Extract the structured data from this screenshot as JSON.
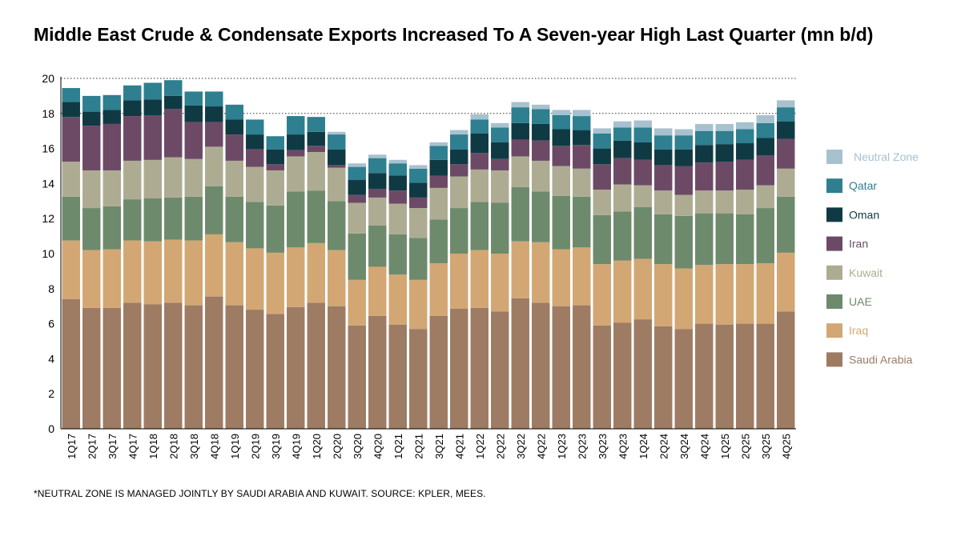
{
  "title": "Middle East Crude & Condensate Exports Increased To A Seven-year High Last Quarter (mn b/d)",
  "footnote": "*NEUTRAL ZONE IS MANAGED JOINTLY BY SAUDI ARABIA AND KUWAIT. SOURCE: KPLER, MEES.",
  "chart_data": {
    "type": "bar",
    "stacked": true,
    "title": "Middle East Crude & Condensate Exports Increased To A Seven-year High Last Quarter (mn b/d)",
    "xlabel": "",
    "ylabel": "",
    "ylim": [
      0,
      20
    ],
    "yticks": [
      0,
      2,
      4,
      6,
      8,
      10,
      12,
      14,
      16,
      18,
      20
    ],
    "grid": "dotted horizontal at 18 and 20",
    "legend_position": "right",
    "categories": [
      "1Q17",
      "2Q17",
      "3Q17",
      "4Q17",
      "1Q18",
      "2Q18",
      "3Q18",
      "4Q18",
      "1Q19",
      "2Q19",
      "3Q19",
      "4Q19",
      "1Q20",
      "2Q20",
      "3Q20",
      "4Q20",
      "1Q21",
      "2Q21",
      "3Q21",
      "4Q21",
      "1Q22",
      "2Q22",
      "3Q22",
      "4Q22",
      "1Q23",
      "2Q23",
      "3Q23",
      "4Q23",
      "1Q24",
      "2Q24",
      "3Q24",
      "4Q24",
      "1Q25",
      "2Q25",
      "3Q25",
      "4Q25"
    ],
    "series": [
      {
        "name": "Saudi Arabia",
        "color": "#9e7b63",
        "values": [
          7.4,
          6.9,
          6.9,
          7.2,
          7.1,
          7.2,
          7.05,
          7.55,
          7.05,
          6.8,
          6.55,
          6.95,
          7.2,
          7.0,
          5.9,
          6.45,
          5.95,
          5.7,
          6.45,
          6.85,
          6.9,
          6.7,
          7.45,
          7.2,
          7.0,
          7.05,
          5.9,
          6.05,
          6.25,
          5.85,
          5.7,
          6.0,
          5.95,
          6.0,
          6.0,
          6.7
        ]
      },
      {
        "name": "Iraq",
        "color": "#d2a774",
        "values": [
          3.35,
          3.3,
          3.35,
          3.55,
          3.6,
          3.6,
          3.7,
          3.55,
          3.6,
          3.5,
          3.5,
          3.4,
          3.4,
          3.2,
          2.6,
          2.8,
          2.85,
          2.8,
          3.0,
          3.15,
          3.3,
          3.3,
          3.25,
          3.45,
          3.25,
          3.3,
          3.5,
          3.55,
          3.45,
          3.55,
          3.45,
          3.35,
          3.45,
          3.4,
          3.45,
          3.35
        ]
      },
      {
        "name": "UAE",
        "color": "#6e8a6c",
        "values": [
          2.5,
          2.4,
          2.45,
          2.35,
          2.45,
          2.4,
          2.5,
          2.75,
          2.6,
          2.65,
          2.7,
          3.2,
          3.0,
          2.8,
          2.65,
          2.35,
          2.3,
          2.4,
          2.5,
          2.6,
          2.75,
          2.9,
          3.1,
          2.9,
          3.05,
          2.9,
          2.8,
          2.8,
          2.95,
          2.85,
          3.0,
          2.95,
          2.9,
          2.85,
          3.15,
          3.2
        ]
      },
      {
        "name": "Kuwait",
        "color": "#adac92",
        "values": [
          2.0,
          2.15,
          2.05,
          2.2,
          2.2,
          2.3,
          2.15,
          2.25,
          2.05,
          2.0,
          2.0,
          2.0,
          2.2,
          1.9,
          1.75,
          1.6,
          1.75,
          1.7,
          1.8,
          1.8,
          1.85,
          1.85,
          1.75,
          1.75,
          1.7,
          1.6,
          1.45,
          1.55,
          1.25,
          1.35,
          1.2,
          1.3,
          1.3,
          1.4,
          1.3,
          1.6
        ]
      },
      {
        "name": "Iran",
        "color": "#6c4a66",
        "values": [
          2.55,
          2.55,
          2.65,
          2.55,
          2.55,
          2.75,
          2.1,
          1.4,
          1.5,
          1.0,
          0.35,
          0.35,
          0.35,
          0.15,
          0.45,
          0.5,
          0.75,
          0.6,
          0.7,
          0.7,
          0.95,
          0.65,
          0.95,
          1.15,
          1.15,
          1.35,
          1.45,
          1.5,
          1.45,
          1.45,
          1.65,
          1.6,
          1.65,
          1.7,
          1.7,
          1.7
        ]
      },
      {
        "name": "Oman",
        "color": "#0f3a44",
        "values": [
          0.85,
          0.8,
          0.8,
          0.9,
          0.9,
          0.75,
          0.95,
          0.9,
          0.85,
          0.85,
          0.85,
          0.9,
          0.8,
          0.9,
          0.85,
          0.9,
          0.85,
          0.85,
          0.9,
          0.85,
          1.1,
          0.95,
          0.95,
          0.95,
          0.95,
          0.85,
          0.9,
          1.0,
          1.0,
          0.9,
          0.95,
          1.0,
          1.0,
          0.95,
          1.0,
          1.0
        ]
      },
      {
        "name": "Qatar",
        "color": "#2e7f8f",
        "values": [
          0.8,
          0.9,
          0.85,
          0.85,
          0.95,
          0.9,
          0.8,
          0.85,
          0.85,
          0.85,
          0.75,
          1.05,
          0.85,
          0.85,
          0.75,
          0.85,
          0.7,
          0.8,
          0.8,
          0.85,
          0.8,
          0.85,
          0.9,
          0.85,
          0.8,
          0.8,
          0.85,
          0.75,
          0.85,
          0.8,
          0.8,
          0.8,
          0.75,
          0.8,
          0.85,
          0.8
        ]
      },
      {
        "name": "Neutral Zone",
        "color": "#a8c1cf",
        "values": [
          0,
          0,
          0,
          0,
          0,
          0,
          0,
          0,
          0,
          0,
          0,
          0,
          0,
          0.15,
          0.2,
          0.2,
          0.2,
          0.2,
          0.2,
          0.25,
          0.3,
          0.25,
          0.3,
          0.25,
          0.3,
          0.35,
          0.3,
          0.35,
          0.4,
          0.4,
          0.35,
          0.4,
          0.4,
          0.4,
          0.45,
          0.4
        ]
      }
    ]
  }
}
